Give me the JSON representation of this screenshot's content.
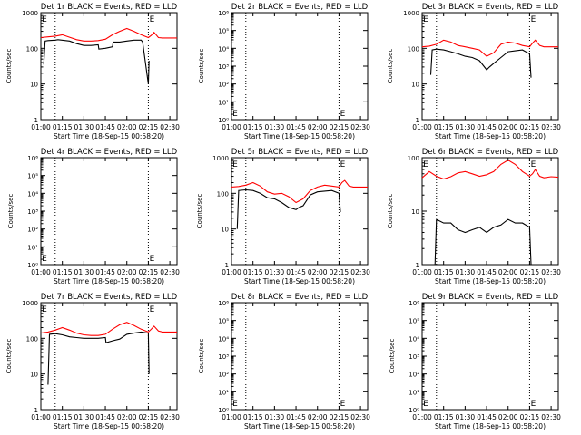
{
  "figure": {
    "xlabel": "Start Time (18-Sep-15 00:58:20)",
    "ylabel": "Counts/sec",
    "x_ticks": [
      "01:00",
      "01:15",
      "01:30",
      "01:45",
      "02:00",
      "02:15",
      "02:30"
    ],
    "x_tick_minutes": [
      0,
      15,
      30,
      45,
      60,
      75,
      90
    ],
    "x_range_minutes": [
      0,
      95
    ],
    "marker_label": "E",
    "dotted_lines_minutes": [
      10,
      75
    ],
    "colors": {
      "events": "#000000",
      "lld": "#ff0000",
      "axes": "#000000"
    }
  },
  "chart_data": [
    {
      "type": "line",
      "title": "Det 1r BLACK = Events, RED = LLD",
      "log_y": true,
      "ylim": [
        1,
        1000
      ],
      "y_ticks": [
        "1",
        "10",
        "100",
        "1000"
      ],
      "series": [
        {
          "name": "LLD",
          "color": "#ff0000",
          "x": [
            0,
            5,
            10,
            15,
            20,
            25,
            30,
            35,
            40,
            45,
            50,
            55,
            60,
            65,
            70,
            75,
            77,
            79,
            82,
            85,
            90,
            95
          ],
          "y": [
            200,
            210,
            220,
            240,
            205,
            175,
            160,
            160,
            165,
            180,
            240,
            300,
            360,
            300,
            240,
            200,
            230,
            280,
            200,
            195,
            195,
            195
          ]
        },
        {
          "name": "Events",
          "color": "#000000",
          "x": [
            2,
            3,
            5,
            10,
            12,
            20,
            25,
            30,
            35,
            40,
            40.5,
            45,
            50,
            50.5,
            55,
            60,
            65,
            70,
            71,
            75,
            75.5
          ],
          "y": [
            35,
            160,
            165,
            170,
            175,
            160,
            135,
            120,
            120,
            125,
            95,
            100,
            110,
            150,
            150,
            160,
            170,
            170,
            150,
            10,
            45
          ]
        }
      ]
    },
    {
      "type": "line",
      "title": "Det 2r BLACK = Events, RED = LLD",
      "log_y": true,
      "ylim": [
        1,
        1000000
      ],
      "y_ticks": [
        "10⁰",
        "10¹",
        "10²",
        "10³",
        "10⁴",
        "10⁵",
        "10⁶"
      ],
      "series": []
    },
    {
      "type": "line",
      "title": "Det 3r BLACK = Events, RED = LLD",
      "log_y": true,
      "ylim": [
        1,
        1000
      ],
      "y_ticks": [
        "1",
        "10",
        "100",
        "1000"
      ],
      "series": [
        {
          "name": "LLD",
          "color": "#ff0000",
          "x": [
            0,
            5,
            10,
            15,
            20,
            25,
            30,
            35,
            40,
            45,
            50,
            55,
            60,
            65,
            70,
            75,
            77,
            79,
            82,
            85,
            90,
            95
          ],
          "y": [
            110,
            115,
            130,
            170,
            150,
            120,
            110,
            100,
            90,
            60,
            75,
            130,
            150,
            140,
            120,
            110,
            140,
            170,
            120,
            110,
            110,
            110
          ]
        },
        {
          "name": "Events",
          "color": "#000000",
          "x": [
            6,
            7,
            10,
            15,
            20,
            25,
            30,
            35,
            40,
            45,
            47,
            50,
            55,
            60,
            65,
            70,
            75,
            76
          ],
          "y": [
            18,
            90,
            95,
            90,
            80,
            70,
            60,
            55,
            45,
            25,
            30,
            38,
            55,
            80,
            85,
            90,
            70,
            15
          ]
        }
      ]
    },
    {
      "type": "line",
      "title": "Det 4r BLACK = Events, RED = LLD",
      "log_y": true,
      "ylim": [
        1,
        1000000
      ],
      "y_ticks": [
        "10⁰",
        "10¹",
        "10²",
        "10³",
        "10⁴",
        "10⁵",
        "10⁶"
      ],
      "series": []
    },
    {
      "type": "line",
      "title": "Det 5r BLACK = Events, RED = LLD",
      "log_y": true,
      "ylim": [
        1,
        1000
      ],
      "y_ticks": [
        "1",
        "10",
        "100",
        "1000"
      ],
      "series": [
        {
          "name": "LLD",
          "color": "#ff0000",
          "x": [
            0,
            5,
            10,
            15,
            20,
            25,
            30,
            35,
            40,
            45,
            50,
            55,
            60,
            65,
            70,
            75,
            77,
            79,
            82,
            85,
            90,
            95
          ],
          "y": [
            150,
            155,
            170,
            200,
            160,
            110,
            95,
            100,
            80,
            55,
            70,
            120,
            150,
            170,
            160,
            150,
            200,
            230,
            160,
            150,
            150,
            150
          ]
        },
        {
          "name": "Events",
          "color": "#000000",
          "x": [
            4,
            5,
            10,
            15,
            20,
            25,
            30,
            35,
            40,
            45,
            47,
            50,
            55,
            60,
            65,
            70,
            75,
            76
          ],
          "y": [
            10,
            120,
            125,
            120,
            100,
            75,
            70,
            55,
            40,
            35,
            40,
            45,
            90,
            110,
            115,
            120,
            100,
            30
          ]
        }
      ]
    },
    {
      "type": "line",
      "title": "Det 6r BLACK = Events, RED = LLD",
      "log_y": true,
      "ylim": [
        1,
        100
      ],
      "y_ticks": [
        "1",
        "10",
        "100"
      ],
      "series": [
        {
          "name": "LLD",
          "color": "#ff0000",
          "x": [
            0,
            5,
            10,
            15,
            20,
            25,
            30,
            35,
            40,
            45,
            50,
            55,
            60,
            65,
            70,
            75,
            77,
            79,
            82,
            85,
            90,
            95
          ],
          "y": [
            42,
            55,
            45,
            40,
            44,
            52,
            55,
            50,
            45,
            48,
            55,
            75,
            90,
            75,
            55,
            45,
            50,
            60,
            45,
            42,
            44,
            43
          ]
        },
        {
          "name": "Events",
          "color": "#000000",
          "x": [
            9,
            10,
            15,
            20,
            25,
            30,
            35,
            40,
            45,
            50,
            55,
            60,
            65,
            70,
            75,
            76
          ],
          "y": [
            1,
            7,
            6,
            6,
            4.5,
            4,
            4.5,
            5,
            4,
            5,
            5.5,
            7,
            6,
            6,
            5,
            1
          ]
        }
      ]
    },
    {
      "type": "line",
      "title": "Det 7r BLACK = Events, RED = LLD",
      "log_y": true,
      "ylim": [
        1,
        1000
      ],
      "y_ticks": [
        "1",
        "10",
        "100",
        "1000"
      ],
      "series": [
        {
          "name": "LLD",
          "color": "#ff0000",
          "x": [
            0,
            5,
            10,
            15,
            20,
            25,
            30,
            35,
            40,
            45,
            50,
            55,
            60,
            65,
            70,
            75,
            77,
            79,
            82,
            85,
            90,
            95
          ],
          "y": [
            140,
            150,
            170,
            200,
            170,
            140,
            125,
            120,
            120,
            130,
            180,
            240,
            280,
            230,
            180,
            150,
            180,
            220,
            160,
            150,
            150,
            150
          ]
        },
        {
          "name": "Events",
          "color": "#000000",
          "x": [
            5,
            6,
            10,
            15,
            20,
            25,
            30,
            35,
            40,
            45,
            45.5,
            50,
            55,
            60,
            65,
            70,
            75,
            75.5
          ],
          "y": [
            5,
            130,
            135,
            125,
            110,
            105,
            100,
            100,
            100,
            105,
            75,
            85,
            95,
            130,
            140,
            150,
            140,
            10
          ]
        }
      ]
    },
    {
      "type": "line",
      "title": "Det 8r BLACK = Events, RED = LLD",
      "log_y": true,
      "ylim": [
        1,
        1000000
      ],
      "y_ticks": [
        "10⁰",
        "10¹",
        "10²",
        "10³",
        "10⁴",
        "10⁵",
        "10⁶"
      ],
      "series": []
    },
    {
      "type": "line",
      "title": "Det 9r BLACK = Events, RED = LLD",
      "log_y": true,
      "ylim": [
        1,
        1000000
      ],
      "y_ticks": [
        "10⁰",
        "10¹",
        "10²",
        "10³",
        "10⁴",
        "10⁵",
        "10⁶"
      ],
      "series": []
    }
  ]
}
